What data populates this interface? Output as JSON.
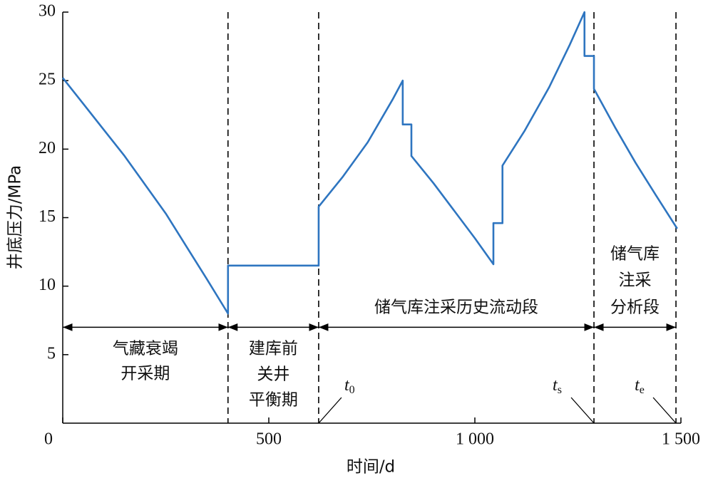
{
  "chart_data": {
    "type": "line",
    "x_label": "时间/d",
    "y_label": "井底压力/MPa",
    "xlim": [
      0,
      1500
    ],
    "ylim": [
      0,
      30
    ],
    "xticks": [
      0,
      500,
      {
        "value": 1000,
        "label": "1 000"
      },
      {
        "value": 1500,
        "label": "1 500"
      }
    ],
    "yticks": [
      5,
      10,
      15,
      20,
      25,
      30
    ],
    "series": [
      {
        "color": "#2e75c0",
        "x": [
          0,
          50,
          100,
          150,
          200,
          250,
          300,
          350,
          401,
          401,
          621,
          621,
          680,
          740,
          800,
          825,
          825,
          846,
          846,
          900,
          950,
          1000,
          1045,
          1045,
          1067,
          1067,
          1120,
          1180,
          1230,
          1266,
          1266,
          1289,
          1289,
          1340,
          1390,
          1440,
          1491
        ],
        "values": [
          25.2,
          23.3,
          21.4,
          19.5,
          17.4,
          15.3,
          12.9,
          10.5,
          8.0,
          11.5,
          11.5,
          15.8,
          18.0,
          20.5,
          23.6,
          25.0,
          21.8,
          21.8,
          19.5,
          17.5,
          15.5,
          13.5,
          11.6,
          14.6,
          14.6,
          18.8,
          21.3,
          24.5,
          27.6,
          30.0,
          26.8,
          26.8,
          24.4,
          21.6,
          19.0,
          16.6,
          14.2
        ]
      }
    ],
    "phase_boundaries": [
      401,
      621,
      1289,
      1488
    ],
    "phase_arrow_y": 7,
    "phases": [
      {
        "start": 0,
        "end": 401,
        "label": [
          "气藏衰竭",
          "开采期"
        ]
      },
      {
        "start": 401,
        "end": 621,
        "label": [
          "建库前",
          "关井",
          "平衡期"
        ]
      },
      {
        "start": 621,
        "end": 1289,
        "label": [
          "储气库注采历史流动段"
        ]
      },
      {
        "start": 1289,
        "end": 1488,
        "label": [
          "储气库",
          "注采",
          "分析段"
        ]
      }
    ],
    "markers": [
      {
        "x": 621,
        "base": "t",
        "sub": "0"
      },
      {
        "x": 1289,
        "base": "t",
        "sub": "s"
      },
      {
        "x": 1488,
        "base": "t",
        "sub": "e"
      }
    ]
  }
}
